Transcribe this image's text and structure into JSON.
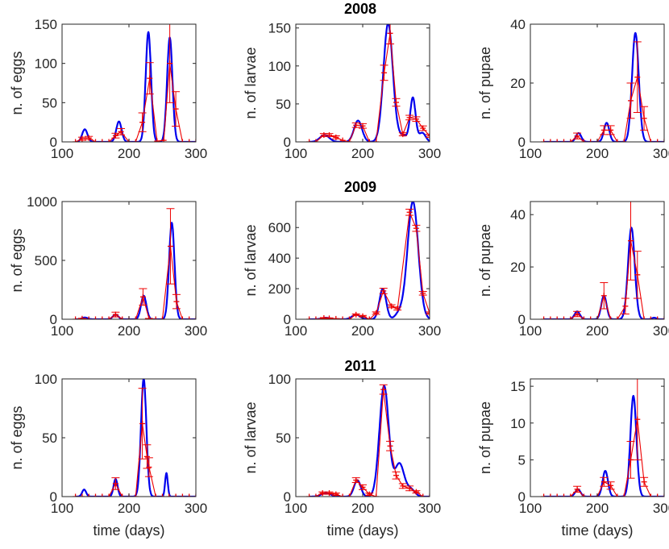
{
  "figure": {
    "model_color": "#0000ee",
    "data_color": "#ee0000"
  },
  "chart_data": [
    {
      "type": "line",
      "title": "2008",
      "xlabel": "",
      "ylabel": "n. of eggs",
      "xlim": [
        100,
        300
      ],
      "ylim": [
        0,
        150
      ],
      "xticks": [
        "100",
        "200",
        "300"
      ],
      "yticks": [
        "0",
        "50",
        "100",
        "150"
      ],
      "model": {
        "peaks": [
          [
            134,
            16,
            4
          ],
          [
            185,
            26,
            4
          ],
          [
            229,
            140,
            4
          ],
          [
            261,
            133,
            4
          ]
        ]
      },
      "observed": [
        {
          "x": 120,
          "y": 0,
          "e": 0
        },
        {
          "x": 130,
          "y": 4,
          "e": 2
        },
        {
          "x": 140,
          "y": 5,
          "e": 2
        },
        {
          "x": 150,
          "y": 0,
          "e": 0
        },
        {
          "x": 160,
          "y": 0,
          "e": 0
        },
        {
          "x": 170,
          "y": 0,
          "e": 0
        },
        {
          "x": 180,
          "y": 8,
          "e": 3
        },
        {
          "x": 188,
          "y": 13,
          "e": 4
        },
        {
          "x": 200,
          "y": 0,
          "e": 0
        },
        {
          "x": 210,
          "y": 0,
          "e": 0
        },
        {
          "x": 220,
          "y": 25,
          "e": 12
        },
        {
          "x": 231,
          "y": 81,
          "e": 20
        },
        {
          "x": 242,
          "y": 1,
          "e": 0
        },
        {
          "x": 252,
          "y": 2,
          "e": 0
        },
        {
          "x": 261,
          "y": 100,
          "e": 50
        },
        {
          "x": 270,
          "y": 42,
          "e": 22
        },
        {
          "x": 280,
          "y": 0,
          "e": 0
        },
        {
          "x": 290,
          "y": 0,
          "e": 0
        },
        {
          "x": 300,
          "y": 0,
          "e": 0
        }
      ]
    },
    {
      "type": "line",
      "title": "2008",
      "xlabel": "",
      "ylabel": "n. of larvae",
      "xlim": [
        100,
        300
      ],
      "ylim": [
        0,
        155
      ],
      "xticks": [
        "100",
        "200",
        "300"
      ],
      "yticks": [
        "0",
        "50",
        "100",
        "150"
      ],
      "model": {
        "peaks": [
          [
            143,
            9,
            7
          ],
          [
            193,
            28,
            6
          ],
          [
            238,
            156,
            7
          ],
          [
            275,
            57,
            4
          ],
          [
            289,
            12,
            5
          ],
          [
            260,
            8,
            8
          ]
        ]
      },
      "observed": [
        {
          "x": 120,
          "y": 0,
          "e": 0
        },
        {
          "x": 130,
          "y": 0,
          "e": 0
        },
        {
          "x": 142,
          "y": 9,
          "e": 2
        },
        {
          "x": 150,
          "y": 9,
          "e": 2
        },
        {
          "x": 160,
          "y": 6,
          "e": 2
        },
        {
          "x": 170,
          "y": 2,
          "e": 0
        },
        {
          "x": 180,
          "y": 0,
          "e": 0
        },
        {
          "x": 190,
          "y": 22,
          "e": 3
        },
        {
          "x": 200,
          "y": 21,
          "e": 3
        },
        {
          "x": 210,
          "y": 0,
          "e": 0
        },
        {
          "x": 220,
          "y": 0,
          "e": 0
        },
        {
          "x": 232,
          "y": 91,
          "e": 10
        },
        {
          "x": 241,
          "y": 143,
          "e": 14
        },
        {
          "x": 250,
          "y": 52,
          "e": 5
        },
        {
          "x": 260,
          "y": 10,
          "e": 2
        },
        {
          "x": 270,
          "y": 32,
          "e": 3
        },
        {
          "x": 280,
          "y": 30,
          "e": 3
        },
        {
          "x": 290,
          "y": 18,
          "e": 3
        },
        {
          "x": 300,
          "y": 8,
          "e": 2
        }
      ]
    },
    {
      "type": "line",
      "title": "2008",
      "xlabel": "",
      "ylabel": "n. of pupae",
      "xlim": [
        100,
        300
      ],
      "ylim": [
        0,
        40
      ],
      "xticks": [
        "100",
        "200",
        "300"
      ],
      "yticks": [
        "0",
        "20",
        "40"
      ],
      "model": {
        "peaks": [
          [
            172,
            3,
            4
          ],
          [
            214,
            6.5,
            4
          ],
          [
            257,
            37,
            5
          ]
        ]
      },
      "observed": [
        {
          "x": 120,
          "y": 0,
          "e": 0
        },
        {
          "x": 130,
          "y": 0,
          "e": 0
        },
        {
          "x": 140,
          "y": 0,
          "e": 0
        },
        {
          "x": 150,
          "y": 0,
          "e": 0
        },
        {
          "x": 160,
          "y": 0,
          "e": 0
        },
        {
          "x": 170,
          "y": 2,
          "e": 1
        },
        {
          "x": 180,
          "y": 0,
          "e": 0
        },
        {
          "x": 190,
          "y": 0,
          "e": 0
        },
        {
          "x": 200,
          "y": 0,
          "e": 0
        },
        {
          "x": 210,
          "y": 4,
          "e": 1.5
        },
        {
          "x": 220,
          "y": 4,
          "e": 1.5
        },
        {
          "x": 230,
          "y": 0,
          "e": 0
        },
        {
          "x": 240,
          "y": 0,
          "e": 0
        },
        {
          "x": 250,
          "y": 14,
          "e": 6
        },
        {
          "x": 260,
          "y": 22,
          "e": 12
        },
        {
          "x": 270,
          "y": 8,
          "e": 4
        },
        {
          "x": 280,
          "y": 0,
          "e": 0
        },
        {
          "x": 290,
          "y": 0,
          "e": 0
        },
        {
          "x": 300,
          "y": 0,
          "e": 0
        }
      ]
    },
    {
      "type": "line",
      "title": "2009",
      "xlabel": "",
      "ylabel": "n. of eggs",
      "xlim": [
        100,
        300
      ],
      "ylim": [
        0,
        1000
      ],
      "xticks": [
        "100",
        "200",
        "300"
      ],
      "yticks": [
        "0",
        "500",
        "1000"
      ],
      "model": {
        "peaks": [
          [
            134,
            15,
            4
          ],
          [
            180,
            40,
            4
          ],
          [
            222,
            200,
            4
          ],
          [
            264,
            820,
            4
          ]
        ]
      },
      "observed": [
        {
          "x": 120,
          "y": 0,
          "e": 0
        },
        {
          "x": 130,
          "y": 5,
          "e": 3
        },
        {
          "x": 140,
          "y": 0,
          "e": 0
        },
        {
          "x": 150,
          "y": 0,
          "e": 0
        },
        {
          "x": 160,
          "y": 0,
          "e": 0
        },
        {
          "x": 170,
          "y": 0,
          "e": 0
        },
        {
          "x": 180,
          "y": 40,
          "e": 20
        },
        {
          "x": 190,
          "y": 0,
          "e": 0
        },
        {
          "x": 200,
          "y": 0,
          "e": 0
        },
        {
          "x": 210,
          "y": 0,
          "e": 0
        },
        {
          "x": 221,
          "y": 190,
          "e": 70
        },
        {
          "x": 230,
          "y": 5,
          "e": 2
        },
        {
          "x": 240,
          "y": 0,
          "e": 0
        },
        {
          "x": 250,
          "y": 0,
          "e": 0
        },
        {
          "x": 262,
          "y": 620,
          "e": 320
        },
        {
          "x": 271,
          "y": 150,
          "e": 60
        },
        {
          "x": 280,
          "y": 0,
          "e": 0
        },
        {
          "x": 290,
          "y": 0,
          "e": 0
        },
        {
          "x": 300,
          "y": 0,
          "e": 0
        }
      ]
    },
    {
      "type": "line",
      "title": "2009",
      "xlabel": "",
      "ylabel": "n. of larvae",
      "xlim": [
        100,
        300
      ],
      "ylim": [
        0,
        770
      ],
      "xticks": [
        "100",
        "200",
        "300"
      ],
      "yticks": [
        "0",
        "200",
        "400",
        "600"
      ],
      "model": {
        "peaks": [
          [
            145,
            10,
            6
          ],
          [
            190,
            30,
            6
          ],
          [
            230,
            200,
            5
          ],
          [
            275,
            770,
            8
          ],
          [
            255,
            40,
            6
          ]
        ]
      },
      "observed": [
        {
          "x": 120,
          "y": 0,
          "e": 0
        },
        {
          "x": 130,
          "y": 0,
          "e": 0
        },
        {
          "x": 142,
          "y": 8,
          "e": 3
        },
        {
          "x": 150,
          "y": 6,
          "e": 3
        },
        {
          "x": 160,
          "y": 3,
          "e": 1
        },
        {
          "x": 170,
          "y": 0,
          "e": 0
        },
        {
          "x": 180,
          "y": 0,
          "e": 0
        },
        {
          "x": 190,
          "y": 30,
          "e": 5
        },
        {
          "x": 200,
          "y": 20,
          "e": 5
        },
        {
          "x": 210,
          "y": 0,
          "e": 0
        },
        {
          "x": 220,
          "y": 40,
          "e": 8
        },
        {
          "x": 231,
          "y": 185,
          "e": 18
        },
        {
          "x": 243,
          "y": 85,
          "e": 10
        },
        {
          "x": 252,
          "y": 70,
          "e": 10
        },
        {
          "x": 270,
          "y": 700,
          "e": 20
        },
        {
          "x": 280,
          "y": 595,
          "e": 20
        },
        {
          "x": 290,
          "y": 170,
          "e": 12
        },
        {
          "x": 300,
          "y": 40,
          "e": 8
        }
      ]
    },
    {
      "type": "line",
      "title": "2009",
      "xlabel": "",
      "ylabel": "n. of pupae",
      "xlim": [
        100,
        300
      ],
      "ylim": [
        0,
        45
      ],
      "xticks": [
        "100",
        "200",
        "300"
      ],
      "yticks": [
        "0",
        "20",
        "40"
      ],
      "model": {
        "peaks": [
          [
            170,
            3,
            4
          ],
          [
            210,
            9,
            4
          ],
          [
            251,
            35,
            5
          ],
          [
            285,
            0.6,
            3
          ]
        ]
      },
      "observed": [
        {
          "x": 120,
          "y": 0,
          "e": 0
        },
        {
          "x": 130,
          "y": 0,
          "e": 0
        },
        {
          "x": 140,
          "y": 0,
          "e": 0
        },
        {
          "x": 150,
          "y": 0,
          "e": 0
        },
        {
          "x": 160,
          "y": 0,
          "e": 0
        },
        {
          "x": 170,
          "y": 2,
          "e": 1
        },
        {
          "x": 180,
          "y": 0,
          "e": 0
        },
        {
          "x": 190,
          "y": 0,
          "e": 0
        },
        {
          "x": 200,
          "y": 0,
          "e": 0
        },
        {
          "x": 210,
          "y": 9,
          "e": 5
        },
        {
          "x": 220,
          "y": 0,
          "e": 0
        },
        {
          "x": 230,
          "y": 0,
          "e": 0
        },
        {
          "x": 242,
          "y": 5,
          "e": 3
        },
        {
          "x": 250,
          "y": 30,
          "e": 15
        },
        {
          "x": 260,
          "y": 17,
          "e": 9
        },
        {
          "x": 270,
          "y": 0,
          "e": 0
        },
        {
          "x": 280,
          "y": 0,
          "e": 0
        },
        {
          "x": 290,
          "y": 0,
          "e": 0
        },
        {
          "x": 300,
          "y": 0,
          "e": 0
        }
      ]
    },
    {
      "type": "line",
      "title": "2011",
      "xlabel": "time (days)",
      "ylabel": "n. of eggs",
      "xlim": [
        100,
        300
      ],
      "ylim": [
        0,
        100
      ],
      "xticks": [
        "100",
        "200",
        "300"
      ],
      "yticks": [
        "0",
        "50",
        "100"
      ],
      "model": {
        "peaks": [
          [
            133,
            6,
            3
          ],
          [
            180,
            15,
            3
          ],
          [
            222,
            100,
            4
          ],
          [
            256,
            20,
            2
          ]
        ]
      },
      "observed": [
        {
          "x": 120,
          "y": 0,
          "e": 0
        },
        {
          "x": 130,
          "y": 0,
          "e": 0
        },
        {
          "x": 140,
          "y": 0,
          "e": 0
        },
        {
          "x": 150,
          "y": 0,
          "e": 0
        },
        {
          "x": 160,
          "y": 0,
          "e": 0
        },
        {
          "x": 170,
          "y": 0,
          "e": 0
        },
        {
          "x": 180,
          "y": 11,
          "e": 5
        },
        {
          "x": 190,
          "y": 0,
          "e": 0
        },
        {
          "x": 200,
          "y": 0,
          "e": 0
        },
        {
          "x": 210,
          "y": 0,
          "e": 0
        },
        {
          "x": 220,
          "y": 62,
          "e": 30
        },
        {
          "x": 227,
          "y": 34,
          "e": 10
        },
        {
          "x": 230,
          "y": 25,
          "e": 8
        },
        {
          "x": 240,
          "y": 0,
          "e": 0
        },
        {
          "x": 250,
          "y": 0,
          "e": 0
        },
        {
          "x": 260,
          "y": 0,
          "e": 0
        },
        {
          "x": 270,
          "y": 0,
          "e": 0
        },
        {
          "x": 280,
          "y": 0,
          "e": 0
        },
        {
          "x": 290,
          "y": 0,
          "e": 0
        },
        {
          "x": 300,
          "y": 0,
          "e": 0
        }
      ]
    },
    {
      "type": "line",
      "title": "2011",
      "xlabel": "time (days)",
      "ylabel": "n. of larvae",
      "xlim": [
        100,
        300
      ],
      "ylim": [
        0,
        100
      ],
      "xticks": [
        "100",
        "200",
        "300"
      ],
      "yticks": [
        "0",
        "50",
        "100"
      ],
      "model": {
        "peaks": [
          [
            145,
            3,
            7
          ],
          [
            192,
            14,
            5
          ],
          [
            232,
            94,
            7
          ],
          [
            255,
            28,
            7
          ],
          [
            272,
            6,
            6
          ]
        ]
      },
      "observed": [
        {
          "x": 120,
          "y": 0,
          "e": 0
        },
        {
          "x": 130,
          "y": 0,
          "e": 0
        },
        {
          "x": 140,
          "y": 3,
          "e": 1
        },
        {
          "x": 150,
          "y": 3,
          "e": 1
        },
        {
          "x": 160,
          "y": 2,
          "e": 1
        },
        {
          "x": 170,
          "y": 0,
          "e": 0
        },
        {
          "x": 180,
          "y": 0,
          "e": 0
        },
        {
          "x": 190,
          "y": 14,
          "e": 2
        },
        {
          "x": 200,
          "y": 8,
          "e": 2
        },
        {
          "x": 210,
          "y": 2,
          "e": 1
        },
        {
          "x": 220,
          "y": 0,
          "e": 0
        },
        {
          "x": 231,
          "y": 91,
          "e": 4
        },
        {
          "x": 241,
          "y": 43,
          "e": 4
        },
        {
          "x": 250,
          "y": 18,
          "e": 3
        },
        {
          "x": 260,
          "y": 9,
          "e": 2
        },
        {
          "x": 270,
          "y": 7,
          "e": 2
        },
        {
          "x": 280,
          "y": 4,
          "e": 1
        },
        {
          "x": 290,
          "y": 0,
          "e": 0
        },
        {
          "x": 300,
          "y": 0,
          "e": 0
        }
      ]
    },
    {
      "type": "line",
      "title": "2011",
      "xlabel": "time (days)",
      "ylabel": "n. of pupae",
      "xlim": [
        100,
        300
      ],
      "ylim": [
        0,
        16
      ],
      "xticks": [
        "100",
        "200",
        "300"
      ],
      "yticks": [
        "0",
        "5",
        "10",
        "15"
      ],
      "model": {
        "peaks": [
          [
            171,
            1,
            4
          ],
          [
            212,
            3.5,
            4
          ],
          [
            254,
            13.7,
            4.5
          ]
        ]
      },
      "observed": [
        {
          "x": 120,
          "y": 0,
          "e": 0
        },
        {
          "x": 130,
          "y": 0,
          "e": 0
        },
        {
          "x": 140,
          "y": 0,
          "e": 0
        },
        {
          "x": 150,
          "y": 0,
          "e": 0
        },
        {
          "x": 160,
          "y": 0,
          "e": 0
        },
        {
          "x": 170,
          "y": 1,
          "e": 0.4
        },
        {
          "x": 180,
          "y": 0,
          "e": 0
        },
        {
          "x": 190,
          "y": 0,
          "e": 0
        },
        {
          "x": 200,
          "y": 0,
          "e": 0
        },
        {
          "x": 210,
          "y": 2,
          "e": 0.6
        },
        {
          "x": 220,
          "y": 1.5,
          "e": 0.5
        },
        {
          "x": 230,
          "y": 0,
          "e": 0
        },
        {
          "x": 240,
          "y": 0,
          "e": 0
        },
        {
          "x": 250,
          "y": 5,
          "e": 2.5
        },
        {
          "x": 260,
          "y": 10.5,
          "e": 5.5
        },
        {
          "x": 270,
          "y": 2,
          "e": 0.6
        },
        {
          "x": 280,
          "y": 0,
          "e": 0
        },
        {
          "x": 290,
          "y": 0,
          "e": 0
        },
        {
          "x": 300,
          "y": 0,
          "e": 0
        }
      ]
    }
  ]
}
